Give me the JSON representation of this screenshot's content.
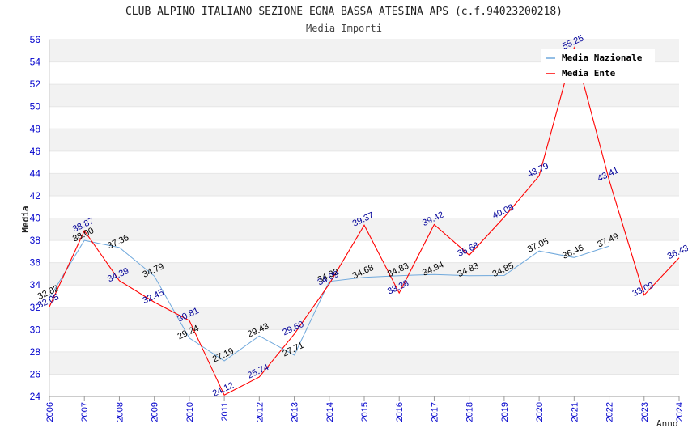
{
  "chart_data": {
    "type": "line",
    "title": "CLUB ALPINO ITALIANO SEZIONE EGNA BASSA ATESINA APS (c.f.94023200218)",
    "subtitle": "Media Importi",
    "xlabel": "Anno",
    "ylabel": "Media",
    "ylim": [
      24,
      56
    ],
    "yticks": [
      24,
      26,
      28,
      30,
      32,
      34,
      36,
      38,
      40,
      42,
      44,
      46,
      48,
      50,
      52,
      54,
      56
    ],
    "x": [
      2006,
      2007,
      2008,
      2009,
      2010,
      2011,
      2012,
      2013,
      2014,
      2015,
      2016,
      2017,
      2018,
      2019,
      2020,
      2021,
      2022,
      2023,
      2024
    ],
    "x_tick_labels": [
      "2006",
      "2007",
      "2008",
      "2009",
      "2010",
      "2011",
      "2012",
      "2013",
      "2014",
      "2015",
      "2016",
      "2017",
      "2018",
      "2019",
      "2020",
      "2021",
      "2022",
      "2023",
      "2024"
    ],
    "grid": "horizontal-bands",
    "legend_position": "top-right",
    "series": [
      {
        "name": "Media Nazionale",
        "color": "#6fa8dc",
        "x": [
          2006,
          2007,
          2008,
          2009,
          2010,
          2011,
          2012,
          2013,
          2014,
          2015,
          2016,
          2017,
          2018,
          2019,
          2020,
          2021,
          2022
        ],
        "values": [
          32.82,
          38.0,
          37.36,
          34.79,
          29.24,
          27.19,
          29.43,
          27.71,
          34.32,
          34.68,
          34.83,
          34.94,
          34.83,
          34.85,
          37.05,
          36.46,
          37.49
        ],
        "labels": [
          "32.82",
          "38.00",
          "37.36",
          "34.79",
          "29.24",
          "27.19",
          "29.43",
          "27.71",
          "34.32",
          "34.68",
          "34.83",
          "34.94",
          "34.83",
          "34.85",
          "37.05",
          "36.46",
          "37.49"
        ]
      },
      {
        "name": "Media Ente",
        "color": "#ff0000",
        "x": [
          2006,
          2007,
          2008,
          2009,
          2010,
          2011,
          2012,
          2013,
          2014,
          2015,
          2016,
          2017,
          2018,
          2019,
          2020,
          2021,
          2022,
          2023,
          2024
        ],
        "values": [
          32.05,
          38.87,
          34.39,
          32.45,
          30.81,
          24.12,
          25.74,
          29.6,
          34.09,
          39.37,
          33.28,
          39.42,
          36.68,
          40.08,
          43.79,
          55.25,
          43.41,
          33.09,
          36.43
        ],
        "labels": [
          "32.05",
          "38.87",
          "34.39",
          "32.45",
          "30.81",
          "24.12",
          "25.74",
          "29.60",
          "34.09",
          "39.37",
          "33.28",
          "39.42",
          "36.68",
          "40.08",
          "43.79",
          "55.25",
          "43.41",
          "33.09",
          "36.43"
        ]
      }
    ]
  }
}
